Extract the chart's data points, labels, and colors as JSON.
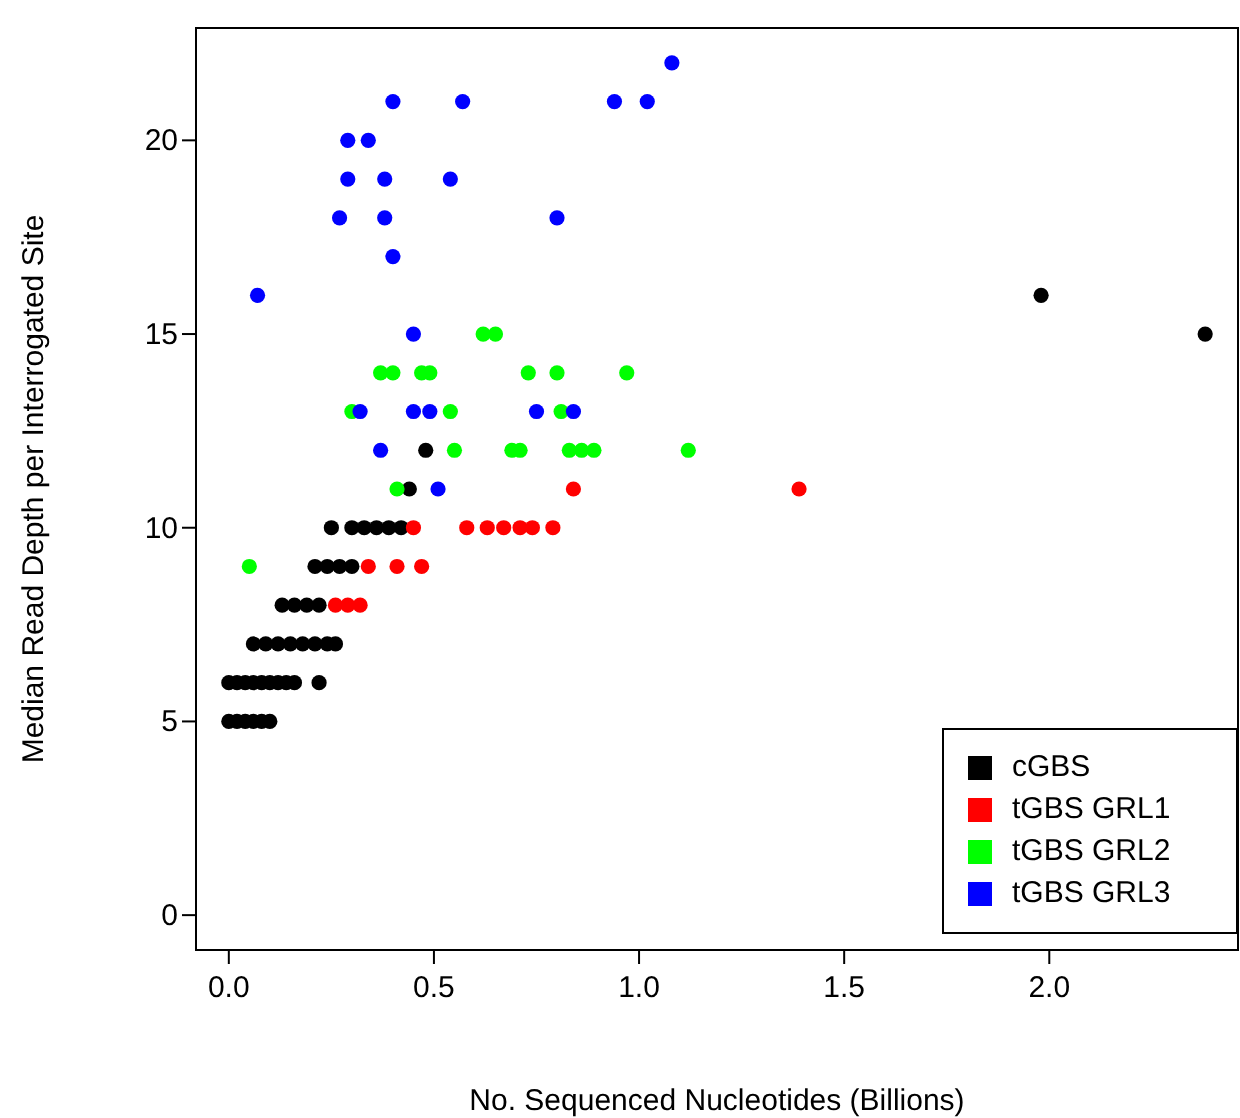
{
  "chart_data": {
    "type": "scatter",
    "xlabel": "No. Sequenced Nucleotides (Billions)",
    "ylabel": "Median Read Depth per Interrogated Site",
    "xlim": [
      -0.08,
      2.46
    ],
    "ylim": [
      -0.9,
      22.9
    ],
    "xticks": [
      {
        "value": 0,
        "label": "0.0"
      },
      {
        "value": 0.5,
        "label": "0.5"
      },
      {
        "value": 1,
        "label": "1.0"
      },
      {
        "value": 1.5,
        "label": "1.5"
      },
      {
        "value": 2,
        "label": "2.0"
      }
    ],
    "yticks": [
      0,
      5,
      10,
      15,
      20
    ],
    "grid": false,
    "legend": "bottom right",
    "marker": "circle",
    "series": [
      {
        "name": "cGBS",
        "color": "#000000",
        "x": [
          1.98,
          2.38,
          0.48,
          0.44,
          0.25,
          0.3,
          0.33,
          0.36,
          0.39,
          0.42,
          0.21,
          0.24,
          0.27,
          0.3,
          0.13,
          0.16,
          0.19,
          0.22,
          0.06,
          0.09,
          0.12,
          0.15,
          0.18,
          0.21,
          0.24,
          0.26,
          0.0,
          0.02,
          0.04,
          0.06,
          0.08,
          0.1,
          0.12,
          0.14,
          0.16,
          0.22,
          0.0,
          0.02,
          0.04,
          0.06,
          0.08,
          0.1
        ],
        "values": [
          16,
          15,
          12,
          11,
          10,
          10,
          10,
          10,
          10,
          10,
          9,
          9,
          9,
          9,
          8,
          8,
          8,
          8,
          7,
          7,
          7,
          7,
          7,
          7,
          7,
          7,
          6,
          6,
          6,
          6,
          6,
          6,
          6,
          6,
          6,
          6,
          5,
          5,
          5,
          5,
          5,
          5
        ]
      },
      {
        "name": "tGBS GRL1",
        "color": "#ff0000",
        "x": [
          0.84,
          1.39,
          0.45,
          0.58,
          0.63,
          0.67,
          0.71,
          0.74,
          0.79,
          0.34,
          0.41,
          0.47,
          0.26,
          0.29,
          0.32
        ],
        "values": [
          11,
          11,
          10,
          10,
          10,
          10,
          10,
          10,
          10,
          9,
          9,
          9,
          8,
          8,
          8
        ]
      },
      {
        "name": "tGBS GRL2",
        "color": "#00ff00",
        "x": [
          0.62,
          0.65,
          0.37,
          0.4,
          0.47,
          0.49,
          0.73,
          0.8,
          0.97,
          0.3,
          0.54,
          0.81,
          0.55,
          0.69,
          0.71,
          0.83,
          0.86,
          0.89,
          1.12,
          0.41,
          0.05
        ],
        "values": [
          15,
          15,
          14,
          14,
          14,
          14,
          14,
          14,
          14,
          13,
          13,
          13,
          12,
          12,
          12,
          12,
          12,
          12,
          12,
          11,
          9
        ]
      },
      {
        "name": "tGBS GRL3",
        "color": "#0000ff",
        "x": [
          1.08,
          0.4,
          0.57,
          0.94,
          1.02,
          0.29,
          0.34,
          0.29,
          0.38,
          0.54,
          0.27,
          0.38,
          0.8,
          0.4,
          0.07,
          0.45,
          0.32,
          0.45,
          0.49,
          0.75,
          0.84,
          0.37,
          0.51
        ],
        "values": [
          22,
          21,
          21,
          21,
          21,
          20,
          20,
          19,
          19,
          19,
          18,
          18,
          18,
          17,
          16,
          15,
          13,
          13,
          13,
          13,
          13,
          12,
          11
        ]
      }
    ]
  }
}
